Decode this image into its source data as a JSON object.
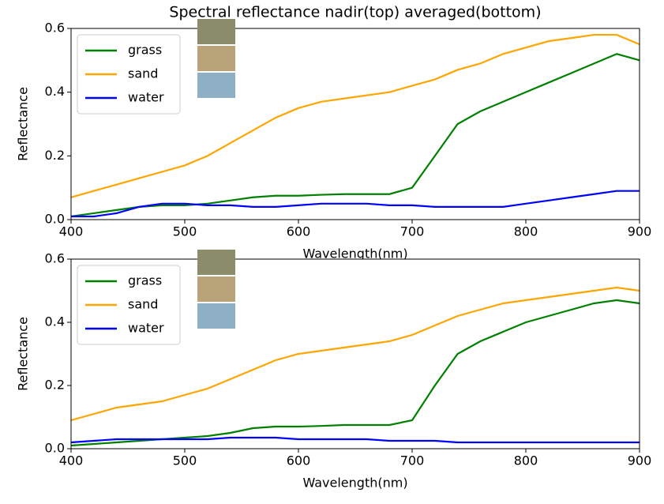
{
  "chart_data": [
    {
      "type": "line",
      "title": "Spectral reflectance nadir(top) averaged(bottom)",
      "xlabel": "Wavelength(nm)",
      "ylabel": "Reflectance",
      "x": [
        400,
        420,
        440,
        460,
        480,
        500,
        520,
        540,
        560,
        580,
        600,
        620,
        640,
        660,
        680,
        700,
        720,
        740,
        760,
        780,
        800,
        820,
        840,
        860,
        880,
        900
      ],
      "series": [
        {
          "name": "grass",
          "color": "#008000",
          "values": [
            0.01,
            0.02,
            0.03,
            0.04,
            0.045,
            0.045,
            0.05,
            0.06,
            0.07,
            0.075,
            0.075,
            0.078,
            0.08,
            0.08,
            0.08,
            0.1,
            0.2,
            0.3,
            0.34,
            0.37,
            0.4,
            0.43,
            0.46,
            0.49,
            0.52,
            0.5
          ]
        },
        {
          "name": "sand",
          "color": "#ffa500",
          "values": [
            0.07,
            0.09,
            0.11,
            0.13,
            0.15,
            0.17,
            0.2,
            0.24,
            0.28,
            0.32,
            0.35,
            0.37,
            0.38,
            0.39,
            0.4,
            0.42,
            0.44,
            0.47,
            0.49,
            0.52,
            0.54,
            0.56,
            0.57,
            0.58,
            0.58,
            0.55
          ]
        },
        {
          "name": "water",
          "color": "#0000ff",
          "values": [
            0.01,
            0.01,
            0.02,
            0.04,
            0.05,
            0.05,
            0.045,
            0.045,
            0.04,
            0.04,
            0.045,
            0.05,
            0.05,
            0.05,
            0.045,
            0.045,
            0.04,
            0.04,
            0.04,
            0.04,
            0.05,
            0.06,
            0.07,
            0.08,
            0.09,
            0.09
          ]
        }
      ],
      "xlim": [
        400,
        900
      ],
      "ylim": [
        0,
        0.6
      ],
      "xticks": [
        400,
        500,
        600,
        700,
        800,
        900
      ],
      "yticks": [
        {
          "value": 0,
          "label": "0.0"
        },
        0.2,
        0.4,
        0.6
      ],
      "legend": "upper left"
    },
    {
      "type": "line",
      "xlabel": "Wavelength(nm)",
      "ylabel": "Reflectance",
      "x": [
        400,
        420,
        440,
        460,
        480,
        500,
        520,
        540,
        560,
        580,
        600,
        620,
        640,
        660,
        680,
        700,
        720,
        740,
        760,
        780,
        800,
        820,
        840,
        860,
        880,
        900
      ],
      "series": [
        {
          "name": "grass",
          "color": "#008000",
          "values": [
            0.01,
            0.015,
            0.02,
            0.025,
            0.03,
            0.035,
            0.04,
            0.05,
            0.065,
            0.07,
            0.07,
            0.072,
            0.075,
            0.075,
            0.075,
            0.09,
            0.2,
            0.3,
            0.34,
            0.37,
            0.4,
            0.42,
            0.44,
            0.46,
            0.47,
            0.46
          ]
        },
        {
          "name": "sand",
          "color": "#ffa500",
          "values": [
            0.09,
            0.11,
            0.13,
            0.14,
            0.15,
            0.17,
            0.19,
            0.22,
            0.25,
            0.28,
            0.3,
            0.31,
            0.32,
            0.33,
            0.34,
            0.36,
            0.39,
            0.42,
            0.44,
            0.46,
            0.47,
            0.48,
            0.49,
            0.5,
            0.51,
            0.5
          ]
        },
        {
          "name": "water",
          "color": "#0000ff",
          "values": [
            0.02,
            0.025,
            0.03,
            0.03,
            0.03,
            0.03,
            0.03,
            0.035,
            0.035,
            0.035,
            0.03,
            0.03,
            0.03,
            0.03,
            0.025,
            0.025,
            0.025,
            0.02,
            0.02,
            0.02,
            0.02,
            0.02,
            0.02,
            0.02,
            0.02,
            0.02
          ]
        }
      ],
      "xlim": [
        400,
        900
      ],
      "ylim": [
        0,
        0.6
      ],
      "xticks": [
        400,
        500,
        600,
        700,
        800,
        900
      ],
      "yticks": [
        {
          "value": 0,
          "label": "0.0"
        },
        0.2,
        0.4,
        0.6
      ],
      "legend": "upper left"
    }
  ]
}
